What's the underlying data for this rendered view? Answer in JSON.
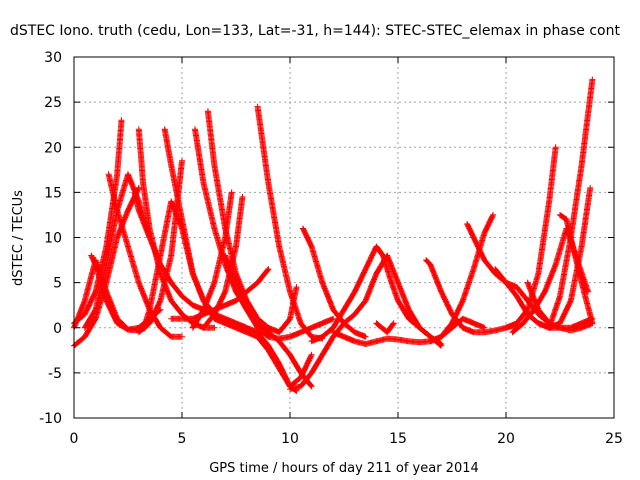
{
  "chart_data": {
    "type": "scatter",
    "title": "dSTEC Iono. truth (cedu, Lon=133, Lat=-31, h=144): STEC-STEC_elemax in phase cont",
    "xlabel": "GPS time / hours of day 211 of year 2014",
    "ylabel": "dSTEC  / TECUs",
    "xlim": [
      0,
      25
    ],
    "ylim": [
      -10,
      30
    ],
    "xticks": [
      0,
      5,
      10,
      15,
      20,
      25
    ],
    "yticks": [
      -10,
      -5,
      0,
      5,
      10,
      15,
      20,
      25,
      30
    ],
    "grid": true,
    "marker": "+",
    "color": "#ff0000",
    "series": [
      {
        "x": [
          0.0,
          0.5,
          1.0,
          1.5,
          2.0,
          2.2
        ],
        "y": [
          0.5,
          1.5,
          4.0,
          9.0,
          17.0,
          23.0
        ]
      },
      {
        "x": [
          0.0,
          0.5,
          1.0,
          1.5,
          2.0,
          2.5,
          3.0
        ],
        "y": [
          -2.0,
          -1.0,
          1.0,
          5.0,
          10.0,
          13.0,
          15.5
        ]
      },
      {
        "x": [
          0.5,
          1.0,
          1.5,
          2.0,
          2.5,
          3.0,
          3.5
        ],
        "y": [
          0.0,
          2.0,
          7.0,
          13.0,
          17.0,
          14.0,
          10.0
        ]
      },
      {
        "x": [
          0.0,
          0.5,
          1.0,
          1.5,
          2.0,
          2.5,
          3.0,
          3.5,
          4.0
        ],
        "y": [
          0.0,
          3.0,
          7.5,
          4.0,
          1.0,
          -0.2,
          0.0,
          1.0,
          2.0
        ]
      },
      {
        "x": [
          0.8,
          1.0,
          1.5,
          2.0,
          2.5,
          3.0,
          3.3
        ],
        "y": [
          8.0,
          7.0,
          3.0,
          0.5,
          -0.2,
          -0.3,
          0.0
        ]
      },
      {
        "x": [
          1.6,
          2.0,
          2.5,
          3.0,
          3.5,
          4.0,
          4.5,
          5.0
        ],
        "y": [
          17.0,
          13.0,
          9.0,
          5.0,
          2.0,
          0.0,
          -1.0,
          -1.0
        ]
      },
      {
        "x": [
          3.0,
          3.2,
          3.5,
          4.0,
          4.5,
          5.0,
          5.5,
          6.0,
          6.5
        ],
        "y": [
          22.0,
          16.0,
          11.0,
          6.0,
          3.0,
          1.5,
          0.5,
          0.0,
          0.0
        ]
      },
      {
        "x": [
          2.8,
          3.0,
          3.5,
          4.0,
          4.5,
          5.0,
          5.5,
          6.0,
          6.5,
          7.0,
          7.5,
          8.0,
          8.5,
          9.0,
          9.5,
          10.0,
          10.3
        ],
        "y": [
          15.0,
          13.0,
          10.0,
          7.0,
          5.0,
          3.5,
          2.5,
          2.0,
          1.5,
          1.0,
          0.5,
          0.0,
          -0.5,
          -2.0,
          -4.0,
          -6.5,
          -7.0
        ]
      },
      {
        "x": [
          3.0,
          3.5,
          4.0,
          4.5,
          5.0
        ],
        "y": [
          -0.5,
          0.5,
          3.0,
          8.0,
          18.5
        ]
      },
      {
        "x": [
          3.3,
          3.5,
          4.0,
          4.5,
          5.0,
          5.5,
          6.0,
          6.5,
          7.0
        ],
        "y": [
          0.5,
          2.0,
          8.0,
          14.0,
          11.0,
          6.0,
          3.0,
          1.0,
          0.5
        ]
      },
      {
        "x": [
          4.2,
          4.5,
          5.0,
          5.5,
          6.0,
          6.5,
          7.0,
          7.5,
          8.0,
          8.5,
          9.0,
          9.5,
          10.0,
          10.5,
          11.0
        ],
        "y": [
          22.0,
          18.0,
          12.0,
          6.0,
          3.0,
          1.5,
          0.5,
          0.0,
          -0.5,
          -1.0,
          -2.5,
          -4.5,
          -6.5,
          -5.5,
          -3.0
        ]
      },
      {
        "x": [
          4.5,
          5.0,
          5.5,
          6.0,
          6.5,
          7.0,
          7.5,
          8.0,
          8.5,
          9.0
        ],
        "y": [
          1.0,
          1.0,
          1.0,
          1.5,
          2.0,
          2.5,
          3.0,
          4.0,
          5.0,
          6.5
        ]
      },
      {
        "x": [
          5.6,
          6.0,
          6.5,
          7.0,
          7.5,
          8.0,
          8.5,
          9.0,
          9.5,
          10.0,
          10.5,
          11.0
        ],
        "y": [
          22.0,
          16.0,
          11.0,
          7.0,
          4.0,
          2.0,
          0.5,
          -0.5,
          -1.5,
          -3.0,
          -5.0,
          -6.5
        ]
      },
      {
        "x": [
          6.2,
          6.5,
          7.0,
          7.5,
          8.0,
          8.5,
          9.0,
          9.5,
          10.0,
          10.3
        ],
        "y": [
          24.0,
          18.0,
          11.0,
          6.0,
          3.0,
          1.0,
          0.0,
          -0.5,
          1.0,
          4.5
        ]
      },
      {
        "x": [
          5.5,
          6.0,
          6.5,
          7.0,
          7.3
        ],
        "y": [
          0.0,
          2.0,
          5.0,
          10.0,
          15.0
        ]
      },
      {
        "x": [
          6.0,
          6.5,
          7.0,
          7.5,
          7.8
        ],
        "y": [
          0.0,
          1.5,
          4.0,
          9.0,
          14.5
        ]
      },
      {
        "x": [
          7.0,
          7.5,
          8.0,
          8.5,
          9.0,
          9.5,
          10.0,
          10.5,
          11.0,
          11.5,
          12.0
        ],
        "y": [
          8.0,
          5.0,
          2.0,
          0.0,
          -1.0,
          -1.2,
          -1.0,
          -0.5,
          0.0,
          0.5,
          1.0
        ]
      },
      {
        "x": [
          8.5,
          9.0,
          9.5,
          10.0,
          10.5,
          11.0,
          11.5
        ],
        "y": [
          24.5,
          16.0,
          9.0,
          4.0,
          0.5,
          -1.0,
          -1.2
        ]
      },
      {
        "x": [
          10.6,
          11.0,
          11.5,
          12.0,
          12.5,
          13.0,
          13.5
        ],
        "y": [
          11.0,
          9.0,
          5.0,
          2.0,
          0.5,
          -0.5,
          -1.0
        ]
      },
      {
        "x": [
          10.0,
          10.5,
          11.0,
          11.5,
          12.0,
          12.5,
          13.0,
          13.5,
          14.0,
          14.5,
          15.0,
          15.5,
          16.0,
          16.5,
          17.0
        ],
        "y": [
          -6.8,
          -6.5,
          -5.0,
          -3.0,
          -1.0,
          0.5,
          1.5,
          3.0,
          6.0,
          8.0,
          5.0,
          2.0,
          0.0,
          -1.0,
          -1.8
        ]
      },
      {
        "x": [
          11.0,
          11.5,
          12.0,
          12.5,
          13.0,
          13.5,
          14.0,
          14.3,
          14.7,
          15.0,
          15.5,
          16.0,
          16.5,
          17.0
        ],
        "y": [
          -1.5,
          -1.0,
          0.0,
          2.0,
          4.0,
          6.5,
          9.0,
          8.0,
          5.0,
          3.0,
          1.0,
          0.0,
          -1.0,
          -2.0
        ]
      },
      {
        "x": [
          12.0,
          12.5,
          13.0,
          13.5,
          14.0,
          14.5,
          15.0,
          15.5,
          16.0,
          16.5,
          17.0,
          17.5,
          18.0,
          18.5,
          19.0
        ],
        "y": [
          -0.5,
          -1.0,
          -1.5,
          -1.8,
          -1.5,
          -1.2,
          -1.3,
          -1.5,
          -1.6,
          -1.5,
          -1.0,
          0.0,
          1.0,
          0.5,
          0.0
        ]
      },
      {
        "x": [
          14.0,
          14.5,
          14.8
        ],
        "y": [
          0.5,
          -0.5,
          0.5
        ]
      },
      {
        "x": [
          16.3,
          16.5,
          17.0,
          17.5,
          18.0,
          18.5,
          19.0,
          19.5,
          20.0,
          20.5
        ],
        "y": [
          7.5,
          7.0,
          4.0,
          1.5,
          0.0,
          -0.5,
          -0.5,
          -0.3,
          0.0,
          0.3
        ]
      },
      {
        "x": [
          16.5,
          17.0,
          17.5,
          18.0,
          18.5,
          19.0,
          19.4
        ],
        "y": [
          -1.5,
          -1.0,
          0.5,
          3.0,
          6.5,
          10.5,
          12.5
        ]
      },
      {
        "x": [
          18.2,
          18.5,
          19.0,
          19.5,
          20.0,
          20.5,
          21.0,
          21.5,
          22.0
        ],
        "y": [
          11.5,
          10.0,
          7.5,
          6.0,
          5.0,
          4.5,
          3.0,
          1.5,
          0.5
        ]
      },
      {
        "x": [
          19.5,
          20.0,
          20.5,
          21.0,
          21.5,
          22.0,
          22.5,
          23.0,
          23.5,
          24.0
        ],
        "y": [
          6.5,
          5.0,
          3.5,
          1.5,
          0.5,
          0.0,
          0.0,
          -0.3,
          0.0,
          0.5
        ]
      },
      {
        "x": [
          20.0,
          20.5,
          21.0,
          21.5,
          22.0,
          22.3
        ],
        "y": [
          0.0,
          0.5,
          2.0,
          6.0,
          14.0,
          20.0
        ]
      },
      {
        "x": [
          20.3,
          20.8,
          21.3,
          21.8,
          22.3,
          22.8,
          23.3,
          23.8
        ],
        "y": [
          -0.5,
          0.5,
          2.0,
          4.0,
          7.0,
          11.0,
          7.5,
          4.0
        ]
      },
      {
        "x": [
          21.0,
          21.5,
          22.0,
          22.5,
          23.0,
          23.5,
          24.0
        ],
        "y": [
          5.0,
          2.0,
          0.5,
          0.0,
          0.0,
          0.5,
          1.0
        ]
      },
      {
        "x": [
          21.5,
          22.0,
          22.5,
          23.0,
          23.5,
          23.9
        ],
        "y": [
          0.5,
          0.0,
          0.5,
          3.0,
          9.0,
          15.5
        ]
      },
      {
        "x": [
          22.0,
          22.5,
          23.0,
          23.5,
          24.0
        ],
        "y": [
          0.0,
          3.5,
          10.0,
          18.0,
          27.5
        ]
      },
      {
        "x": [
          22.5,
          22.8,
          23.0,
          23.5,
          24.0
        ],
        "y": [
          12.5,
          12.0,
          10.0,
          5.0,
          0.5
        ]
      }
    ]
  }
}
